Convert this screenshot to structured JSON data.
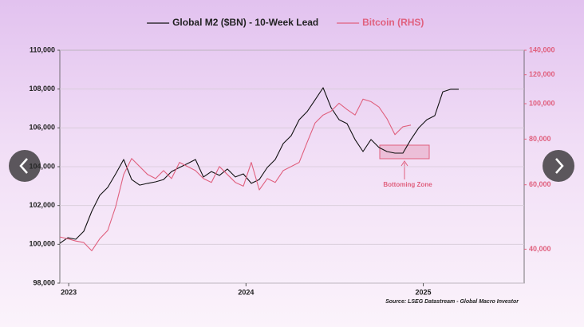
{
  "chart_data": {
    "type": "line",
    "legend": "top",
    "grid": true,
    "source": "Source: LSEG Datastream - Global Macro Investor",
    "annotation": "Bottoming Zone",
    "x": [
      2022.95,
      2022.995,
      2023.04,
      2023.085,
      2023.13,
      2023.175,
      2023.22,
      2023.265,
      2023.31,
      2023.355,
      2023.4,
      2023.445,
      2023.49,
      2023.535,
      2023.58,
      2023.625,
      2023.67,
      2023.715,
      2023.76,
      2023.805,
      2023.85,
      2023.895,
      2023.94,
      2023.985,
      2024.03,
      2024.075,
      2024.12,
      2024.165,
      2024.21,
      2024.255,
      2024.3,
      2024.345,
      2024.39,
      2024.435,
      2024.48,
      2024.525,
      2024.57,
      2024.615,
      2024.66,
      2024.705,
      2024.75,
      2024.795,
      2024.84,
      2024.885,
      2024.93,
      2024.975,
      2025.02,
      2025.065,
      2025.11,
      2025.155,
      2025.2
    ],
    "xlim": [
      2022.95,
      2025.569
    ],
    "xticks": [
      2023,
      2024,
      2025
    ],
    "ylim": [
      98000,
      110000
    ],
    "yticks": [
      {
        "value": 98000,
        "label": "98,000"
      },
      {
        "value": 100000,
        "label": "100,000"
      },
      {
        "value": 102000,
        "label": "102,000"
      },
      {
        "value": 104000,
        "label": "104,000"
      },
      {
        "value": 106000,
        "label": "106,000"
      },
      {
        "value": 108000,
        "label": "108,000"
      },
      {
        "value": 110000,
        "label": "110,000"
      }
    ],
    "y2lim": [
      32300,
      140000
    ],
    "y2log": true,
    "y2ticks": [
      {
        "value": 40000,
        "label": "40,000"
      },
      {
        "value": 60000,
        "label": "60,000"
      },
      {
        "value": 80000,
        "label": "80,000"
      },
      {
        "value": 100000,
        "label": "100,000"
      },
      {
        "value": 120000,
        "label": "120,000"
      },
      {
        "value": 140000,
        "label": "140,000"
      }
    ],
    "y2color": "#e0607e",
    "series": [
      {
        "name": "Global M2 ($BN) - 10-Week Lead",
        "color": "#111111",
        "values": [
          100050,
          100340,
          100260,
          100670,
          101700,
          102520,
          102930,
          103630,
          104370,
          103340,
          103050,
          103140,
          103220,
          103340,
          103750,
          103960,
          104160,
          104370,
          103470,
          103750,
          103550,
          103880,
          103470,
          103630,
          103140,
          103340,
          103960,
          104370,
          105190,
          105600,
          106420,
          106840,
          107450,
          108070,
          107040,
          106420,
          106220,
          105400,
          104780,
          105400,
          104990,
          104780,
          104700,
          104700,
          105400,
          106010,
          106420,
          106630,
          107860,
          107990,
          107990
        ]
      },
      {
        "name": "Bitcoin (RHS)",
        "color": "#e0607e",
        "axis": "y2",
        "values": [
          43200,
          42700,
          42100,
          41700,
          39600,
          42700,
          45000,
          52300,
          64000,
          70800,
          67300,
          64000,
          62400,
          65600,
          62400,
          69100,
          67300,
          65600,
          62400,
          60900,
          67300,
          64000,
          60900,
          59500,
          69100,
          58100,
          62400,
          60900,
          65600,
          67300,
          69100,
          78400,
          88600,
          93100,
          95400,
          100300,
          96400,
          93100,
          102900,
          101300,
          97900,
          91000,
          82300,
          86500,
          87400,
          null,
          null,
          null,
          null,
          null,
          null
        ]
      }
    ]
  }
}
